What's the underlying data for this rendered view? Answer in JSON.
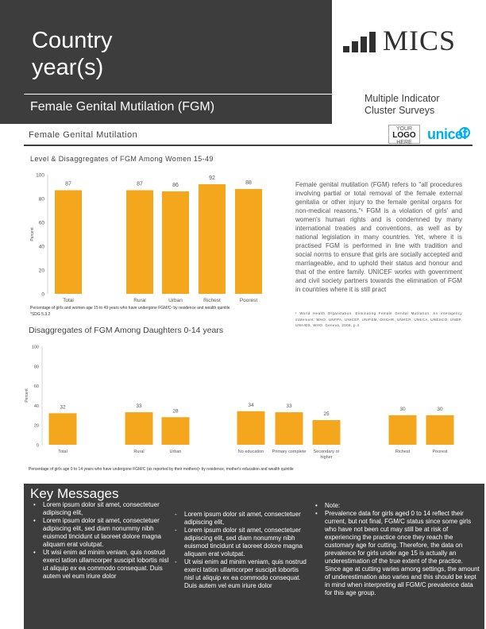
{
  "header": {
    "title_line1": "Country",
    "title_line2": "year(s)",
    "subtitle": "Female Genital Mutilation (FGM)",
    "brand": "MICS",
    "brand_sub_line1": "Multiple Indicator",
    "brand_sub_line2": "Cluster Surveys",
    "logo_line1": "YOUR",
    "logo_line2": "LOGO",
    "logo_line3": "HERE",
    "unicef": "unicef"
  },
  "section_title": "Female Genital Mutilation",
  "chart1_title": "Level & Disaggregates of FGM Among Women 15-49",
  "chart1_caption_line1": "Percentage of girls and women age 15 to 49 years who have undergone FGM/C¹ by residence and wealth quintile",
  "chart1_caption_line2": "*SDG 5.3.2",
  "chart2_title": "Disaggregates of FGM Among Daughters 0-14 years",
  "chart2_caption": "Percentage of girls age 0 to 14 years who have undergone FGM/C (as reported by their mothers)¹ by residence, mother's education and wealth quintile",
  "description": "Female genital mutilation (FGM) refers to \"all procedures involving partial or total removal of the female external genitalia or other injury to the female genital organs for non-medical reasons.\"¹ FGM is a violation of girls' and women's human rights and is condemned by many international treaties and conventions, as well as by national legislation in many countries. Yet, where it is practised FGM is performed in line with tradition and social norms to ensure that girls are socially accepted and marriageable, and to uphold their status and honour and that of the entire family. UNICEF works with government and civil society partners towards the elimination of FGM in countries where it is still pract",
  "footnote": "¹ World Health Organization. Eliminating Female Genital Mutilation: An interagency statement: WHO, UNFPA, UNICEF, UNIFEM, OHCHR, UNHCR, UNECA, UNESCO, UNDP, UNAIDS, WHO. Geneva, 2008, p.4",
  "key_messages": {
    "title": "Key Messages",
    "col1": [
      "Lorem ipsum dolor sit amet, consectetuer adipiscing elit,",
      "Lorem ipsum dolor sit amet, consectetuer adipiscing elit, sed diam nonummy nibh euismod tincidunt ut laoreet dolore magna aliquam erat volutpat.",
      "Ut wisi enim ad minim veniam, quis nostrud exerci tation ullamcorper suscipit lobortis nisl ut aliquip ex ea commodo consequat. Duis autem vel eum iriure dolor"
    ],
    "col2": [
      "Lorem ipsum dolor sit amet, consectetuer adipiscing elit,",
      "Lorem ipsum dolor sit amet, consectetuer adipiscing elit, sed diam nonummy nibh euismod tincidunt ut laoreet dolore magna aliquam erat volutpat.",
      "Ut wisi enim ad minim veniam, quis nostrud exerci tation ullamcorper suscipit lobortis nisl ut aliquip ex ea commodo consequat. Duis autem vel eum iriure dolor"
    ],
    "col3": [
      "Note:",
      "Prevalence data for girls aged 0 to 14 reflect their current, but not final, FGM/C status since some girls who have not been cut may still be at risk of experiencing the practice once they reach the customary age for cutting. Therefore, the data on prevalence for girls under age 15 is actually an underestimation of the true extent of the practice. Since age at cutting varies among settings, the amount of underestimation also varies and this should be kept in mind when interpreting all FGM/C prevalence data for this age group."
    ]
  },
  "colors": {
    "bar": "#f4a61d",
    "dark": "#3d3d3d"
  },
  "chart_data": [
    {
      "type": "bar",
      "title": "Level & Disaggregates of FGM Among Women 15-49",
      "categories": [
        "Total",
        "Rural",
        "Urban",
        "Richest",
        "Poorest"
      ],
      "values": [
        87,
        87,
        86,
        92,
        88
      ],
      "ylabel": "Percent",
      "ylim": [
        0,
        100
      ],
      "yticks": [
        0,
        20,
        40,
        60,
        80,
        100
      ]
    },
    {
      "type": "bar",
      "title": "Disaggregates of FGM Among Daughters 0-14 years",
      "categories": [
        "Total",
        "Rural",
        "Urban",
        "No education",
        "Primary complete",
        "Secondary or higher",
        "Richest",
        "Poorest"
      ],
      "values": [
        32,
        33,
        28,
        34,
        33,
        25,
        30,
        30
      ],
      "ylabel": "Percent",
      "ylim": [
        0,
        100
      ],
      "yticks": [
        0,
        20,
        40,
        60,
        80,
        100
      ]
    }
  ]
}
